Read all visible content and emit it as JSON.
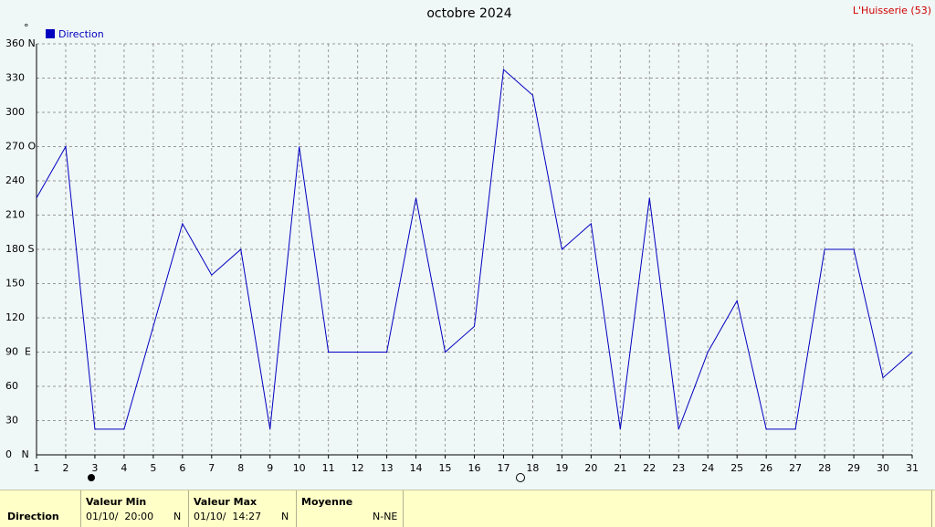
{
  "chart_data": {
    "type": "line",
    "title": "octobre 2024",
    "station": "L'Huisserie (53)",
    "unit": "°",
    "x": [
      1,
      2,
      3,
      4,
      5,
      6,
      7,
      8,
      9,
      10,
      11,
      12,
      13,
      14,
      15,
      16,
      17,
      18,
      19,
      20,
      21,
      22,
      23,
      24,
      25,
      26,
      27,
      28,
      29,
      30,
      31
    ],
    "series": [
      {
        "name": "Direction",
        "color": "#0000c0",
        "values": [
          225,
          270,
          22.5,
          22.5,
          112.5,
          202.5,
          157.5,
          180,
          22.5,
          270,
          90,
          90,
          90,
          225,
          90,
          112.5,
          337.5,
          315,
          180,
          202.5,
          22.5,
          225,
          22.5,
          90,
          135,
          22.5,
          22.5,
          180,
          180,
          67.5,
          90
        ]
      }
    ],
    "xlim": [
      1,
      31
    ],
    "xticks": [
      1,
      2,
      3,
      4,
      5,
      6,
      7,
      8,
      9,
      10,
      11,
      12,
      13,
      14,
      15,
      16,
      17,
      18,
      19,
      20,
      21,
      22,
      23,
      24,
      25,
      26,
      27,
      28,
      29,
      30,
      31
    ],
    "ylim": [
      0,
      360
    ],
    "yticks": [
      {
        "value": 0,
        "label": "0   N"
      },
      30,
      60,
      {
        "value": 90,
        "label": "90  E"
      },
      120,
      150,
      {
        "value": 180,
        "label": "180 S"
      },
      210,
      240,
      {
        "value": 270,
        "label": "270 O"
      },
      300,
      330,
      {
        "value": 360,
        "label": "360 N"
      }
    ],
    "grid": true
  },
  "summary": {
    "row_label": "Direction",
    "min": {
      "header": "Valeur Min",
      "date": "01/10/  20:00",
      "dir": "N"
    },
    "max": {
      "header": "Valeur Max",
      "date": "01/10/  14:27",
      "dir": "N"
    },
    "mean": {
      "header": "Moyenne",
      "value": "N-NE"
    }
  }
}
